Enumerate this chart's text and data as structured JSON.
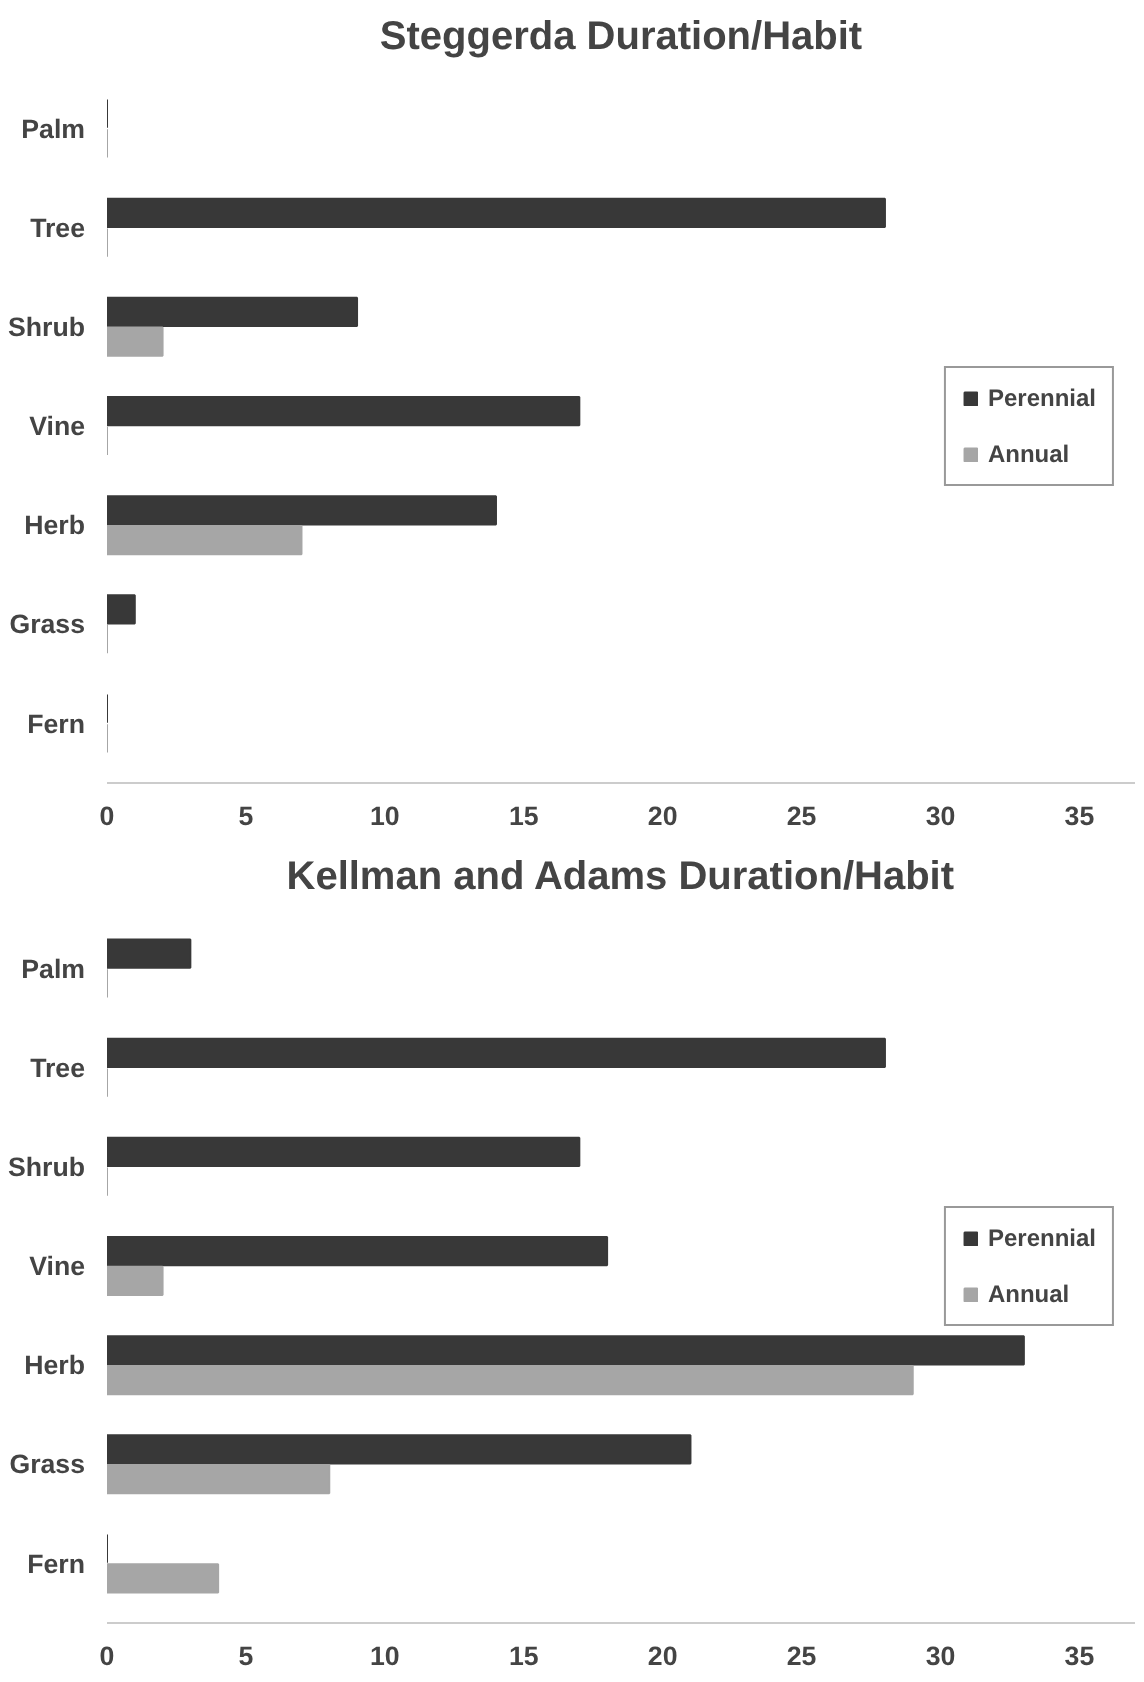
{
  "chart_data": [
    {
      "type": "bar",
      "orientation": "horizontal",
      "title": "Steggerda Duration/Habit",
      "categories": [
        "Palm",
        "Tree",
        "Shrub",
        "Vine",
        "Herb",
        "Grass",
        "Fern"
      ],
      "series": [
        {
          "name": "Perennial",
          "color": "#383838",
          "values": [
            0,
            28,
            9,
            17,
            14,
            1,
            0
          ]
        },
        {
          "name": "Annual",
          "color": "#a6a6a6",
          "values": [
            0,
            0,
            2,
            0,
            7,
            0,
            0
          ]
        }
      ],
      "xlim": [
        0,
        37
      ],
      "xticks": [
        0,
        5,
        10,
        15,
        20,
        25,
        30,
        35
      ],
      "legend": "right",
      "grid": false
    },
    {
      "type": "bar",
      "orientation": "horizontal",
      "title": "Kellman and Adams Duration/Habit",
      "categories": [
        "Palm",
        "Tree",
        "Shrub",
        "Vine",
        "Herb",
        "Grass",
        "Fern"
      ],
      "series": [
        {
          "name": "Perennial",
          "color": "#383838",
          "values": [
            3,
            28,
            17,
            18,
            33,
            21,
            0
          ]
        },
        {
          "name": "Annual",
          "color": "#a6a6a6",
          "values": [
            0,
            0,
            0,
            2,
            29,
            8,
            4
          ]
        }
      ],
      "xlim": [
        0,
        37
      ],
      "xticks": [
        0,
        5,
        10,
        15,
        20,
        25,
        30,
        35
      ],
      "legend": "right",
      "grid": false
    }
  ]
}
